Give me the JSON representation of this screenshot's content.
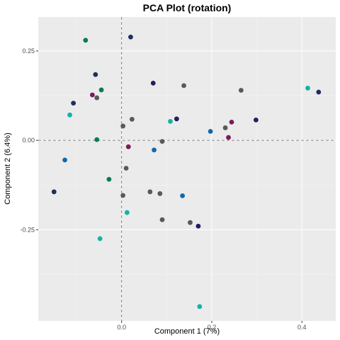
{
  "chart_data": {
    "type": "scatter",
    "title": "PCA Plot (rotation)",
    "xlabel": "Component 1 (7%)",
    "ylabel": "Component 2 (6.4%)",
    "xlim": [
      -0.185,
      0.475
    ],
    "ylim": [
      -0.505,
      0.345
    ],
    "x_ticks": [
      0.0,
      0.2,
      0.4
    ],
    "x_tick_labels": [
      "0.0",
      "0.2",
      "0.4"
    ],
    "y_ticks": [
      0.25,
      0.0,
      -0.25
    ],
    "y_tick_labels": [
      "0.25",
      "0.00",
      "-0.25"
    ],
    "grid": true,
    "reference_lines": {
      "x": 0,
      "y": 0
    },
    "points": [
      {
        "x": -0.08,
        "y": 0.28,
        "color": "#0b7a5a"
      },
      {
        "x": 0.02,
        "y": 0.289,
        "color": "#1d2f60"
      },
      {
        "x": -0.058,
        "y": 0.184,
        "color": "#1d2f60"
      },
      {
        "x": -0.045,
        "y": 0.141,
        "color": "#0b7a5a"
      },
      {
        "x": -0.055,
        "y": 0.119,
        "color": "#595959"
      },
      {
        "x": -0.065,
        "y": 0.127,
        "color": "#7b1a5e"
      },
      {
        "x": -0.107,
        "y": 0.104,
        "color": "#1d2f60"
      },
      {
        "x": -0.115,
        "y": 0.071,
        "color": "#14b2a6"
      },
      {
        "x": -0.055,
        "y": 0.002,
        "color": "#0b7a5a"
      },
      {
        "x": -0.126,
        "y": -0.055,
        "color": "#1268a8"
      },
      {
        "x": -0.15,
        "y": -0.144,
        "color": "#1d2f60"
      },
      {
        "x": -0.028,
        "y": -0.109,
        "color": "#0b7a5a"
      },
      {
        "x": -0.048,
        "y": -0.275,
        "color": "#14b2a6"
      },
      {
        "x": 0.012,
        "y": -0.202,
        "color": "#14b2a6"
      },
      {
        "x": 0.003,
        "y": -0.154,
        "color": "#595959"
      },
      {
        "x": 0.01,
        "y": -0.078,
        "color": "#595959"
      },
      {
        "x": 0.015,
        "y": -0.018,
        "color": "#7b1a5e"
      },
      {
        "x": 0.003,
        "y": 0.04,
        "color": "#595959"
      },
      {
        "x": 0.023,
        "y": 0.059,
        "color": "#595959"
      },
      {
        "x": 0.07,
        "y": 0.16,
        "color": "#2a1a5e"
      },
      {
        "x": 0.138,
        "y": 0.153,
        "color": "#595959"
      },
      {
        "x": 0.108,
        "y": 0.053,
        "color": "#14b2a6"
      },
      {
        "x": 0.122,
        "y": 0.06,
        "color": "#2a1a5e"
      },
      {
        "x": 0.09,
        "y": -0.003,
        "color": "#595959"
      },
      {
        "x": 0.072,
        "y": -0.027,
        "color": "#1268a8"
      },
      {
        "x": 0.063,
        "y": -0.144,
        "color": "#595959"
      },
      {
        "x": 0.085,
        "y": -0.149,
        "color": "#595959"
      },
      {
        "x": 0.09,
        "y": -0.222,
        "color": "#595959"
      },
      {
        "x": 0.135,
        "y": -0.155,
        "color": "#1268a8"
      },
      {
        "x": 0.152,
        "y": -0.23,
        "color": "#595959"
      },
      {
        "x": 0.17,
        "y": -0.24,
        "color": "#2a1a5e"
      },
      {
        "x": 0.173,
        "y": -0.465,
        "color": "#14b2a6"
      },
      {
        "x": 0.197,
        "y": 0.025,
        "color": "#1268a8"
      },
      {
        "x": 0.23,
        "y": 0.035,
        "color": "#595959"
      },
      {
        "x": 0.237,
        "y": 0.008,
        "color": "#7b1a5e"
      },
      {
        "x": 0.244,
        "y": 0.051,
        "color": "#7b1a5e"
      },
      {
        "x": 0.265,
        "y": 0.14,
        "color": "#595959"
      },
      {
        "x": 0.298,
        "y": 0.057,
        "color": "#2a1a5e"
      },
      {
        "x": 0.413,
        "y": 0.146,
        "color": "#14b2a6"
      },
      {
        "x": 0.437,
        "y": 0.135,
        "color": "#1d2f60"
      }
    ]
  },
  "colors": {
    "panel_background": "#ebebeb",
    "major_grid": "#ffffff",
    "reference_line": "#666666"
  }
}
